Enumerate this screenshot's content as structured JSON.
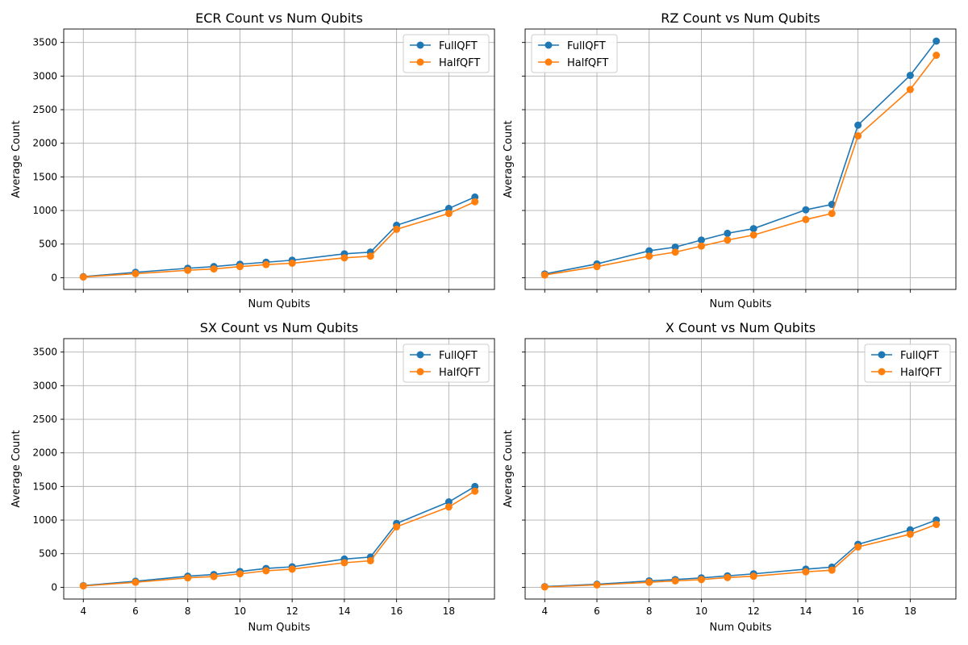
{
  "figure": {
    "colors": {
      "FullQFT": "#1f77b4",
      "HalfQFT": "#ff7f0e",
      "grid": "#b0b0b0"
    }
  },
  "chart_data": [
    {
      "type": "line",
      "title": "ECR Count vs Num Qubits",
      "xlabel": "Num Qubits",
      "ylabel": "Average Count",
      "xlim": [
        3.25,
        19.75
      ],
      "ylim": [
        -175,
        3700
      ],
      "xticks": [
        4,
        6,
        8,
        10,
        12,
        14,
        16,
        18
      ],
      "show_xtick_labels": false,
      "yticks": [
        0,
        500,
        1000,
        1500,
        2000,
        2500,
        3000,
        3500
      ],
      "show_ytick_labels": true,
      "grid": true,
      "legend": "top-right",
      "x": [
        4,
        6,
        8,
        9,
        10,
        11,
        12,
        14,
        15,
        16,
        18,
        19
      ],
      "series": [
        {
          "name": "FullQFT",
          "color": "#1f77b4",
          "values": [
            15,
            80,
            140,
            165,
            200,
            230,
            260,
            355,
            380,
            780,
            1030,
            1200
          ]
        },
        {
          "name": "HalfQFT",
          "color": "#ff7f0e",
          "values": [
            10,
            60,
            110,
            130,
            165,
            195,
            215,
            295,
            320,
            720,
            955,
            1130
          ]
        }
      ]
    },
    {
      "type": "line",
      "title": "RZ Count vs Num Qubits",
      "xlabel": "Num Qubits",
      "ylabel": "Average Count",
      "xlim": [
        3.25,
        19.75
      ],
      "ylim": [
        -175,
        3700
      ],
      "xticks": [
        4,
        6,
        8,
        10,
        12,
        14,
        16,
        18
      ],
      "show_xtick_labels": false,
      "yticks": [
        0,
        500,
        1000,
        1500,
        2000,
        2500,
        3000,
        3500
      ],
      "show_ytick_labels": false,
      "grid": true,
      "legend": "top-left",
      "x": [
        4,
        6,
        8,
        9,
        10,
        11,
        12,
        14,
        15,
        16,
        18,
        19
      ],
      "series": [
        {
          "name": "FullQFT",
          "color": "#1f77b4",
          "values": [
            55,
            205,
            400,
            455,
            560,
            660,
            730,
            1010,
            1090,
            2270,
            3010,
            3520
          ]
        },
        {
          "name": "HalfQFT",
          "color": "#ff7f0e",
          "values": [
            40,
            165,
            320,
            380,
            470,
            560,
            635,
            865,
            955,
            2110,
            2800,
            3310
          ]
        }
      ]
    },
    {
      "type": "line",
      "title": "SX Count vs Num Qubits",
      "xlabel": "Num Qubits",
      "ylabel": "Average Count",
      "xlim": [
        3.25,
        19.75
      ],
      "ylim": [
        -175,
        3700
      ],
      "xticks": [
        4,
        6,
        8,
        10,
        12,
        14,
        16,
        18
      ],
      "show_xtick_labels": true,
      "yticks": [
        0,
        500,
        1000,
        1500,
        2000,
        2500,
        3000,
        3500
      ],
      "show_ytick_labels": true,
      "grid": true,
      "legend": "top-right",
      "x": [
        4,
        6,
        8,
        9,
        10,
        11,
        12,
        14,
        15,
        16,
        18,
        19
      ],
      "series": [
        {
          "name": "FullQFT",
          "color": "#1f77b4",
          "values": [
            25,
            90,
            165,
            190,
            235,
            280,
            305,
            420,
            450,
            950,
            1270,
            1500
          ]
        },
        {
          "name": "HalfQFT",
          "color": "#ff7f0e",
          "values": [
            20,
            75,
            140,
            160,
            200,
            245,
            270,
            365,
            395,
            900,
            1195,
            1430
          ]
        }
      ]
    },
    {
      "type": "line",
      "title": "X Count vs Num Qubits",
      "xlabel": "Num Qubits",
      "ylabel": "Average Count",
      "xlim": [
        3.25,
        19.75
      ],
      "ylim": [
        -175,
        3700
      ],
      "xticks": [
        4,
        6,
        8,
        10,
        12,
        14,
        16,
        18
      ],
      "show_xtick_labels": true,
      "yticks": [
        0,
        500,
        1000,
        1500,
        2000,
        2500,
        3000,
        3500
      ],
      "show_ytick_labels": false,
      "grid": true,
      "legend": "top-right",
      "x": [
        4,
        6,
        8,
        9,
        10,
        11,
        12,
        14,
        15,
        16,
        18,
        19
      ],
      "series": [
        {
          "name": "FullQFT",
          "color": "#1f77b4",
          "values": [
            10,
            45,
            95,
            115,
            140,
            170,
            200,
            270,
            300,
            640,
            855,
            1000
          ]
        },
        {
          "name": "HalfQFT",
          "color": "#ff7f0e",
          "values": [
            5,
            35,
            75,
            95,
            115,
            145,
            165,
            230,
            255,
            600,
            790,
            935
          ]
        }
      ]
    }
  ]
}
